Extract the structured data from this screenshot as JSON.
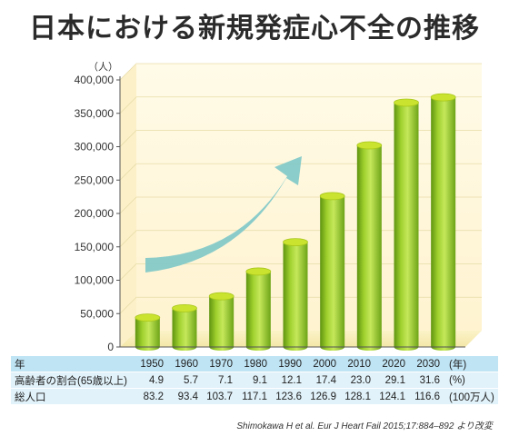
{
  "title": "日本における新規発症心不全の推移",
  "chart_data": {
    "type": "bar",
    "title": "日本における新規発症心不全の推移",
    "y_unit": "（人）",
    "ylim": [
      0,
      400000
    ],
    "y_ticks": [
      "0",
      "50,000",
      "100,000",
      "150,000",
      "200,000",
      "250,000",
      "300,000",
      "350,000",
      "400,000"
    ],
    "categories": [
      "1950",
      "1960",
      "1970",
      "1980",
      "1990",
      "2000",
      "2010",
      "2020",
      "2030"
    ],
    "values": [
      44000,
      58000,
      76000,
      113000,
      157000,
      226000,
      302000,
      366000,
      374000
    ],
    "bar_color": "#8cbd1e",
    "arrow_color": "#7ec8c8"
  },
  "table": {
    "year_label": "年",
    "year_unit": "(年)",
    "rows": [
      {
        "label": "高齢者の割合(65歳以上)",
        "values": [
          "4.9",
          "5.7",
          "7.1",
          "9.1",
          "12.1",
          "17.4",
          "23.0",
          "29.1",
          "31.6"
        ],
        "unit": "(%)"
      },
      {
        "label": "総人口",
        "values": [
          "83.2",
          "93.4",
          "103.7",
          "117.1",
          "123.6",
          "126.9",
          "128.1",
          "124.1",
          "116.6"
        ],
        "unit": "(100万人)"
      }
    ]
  },
  "source": "Shimokawa H et al. Eur J Heart Fail 2015;17:884–892 より改変"
}
